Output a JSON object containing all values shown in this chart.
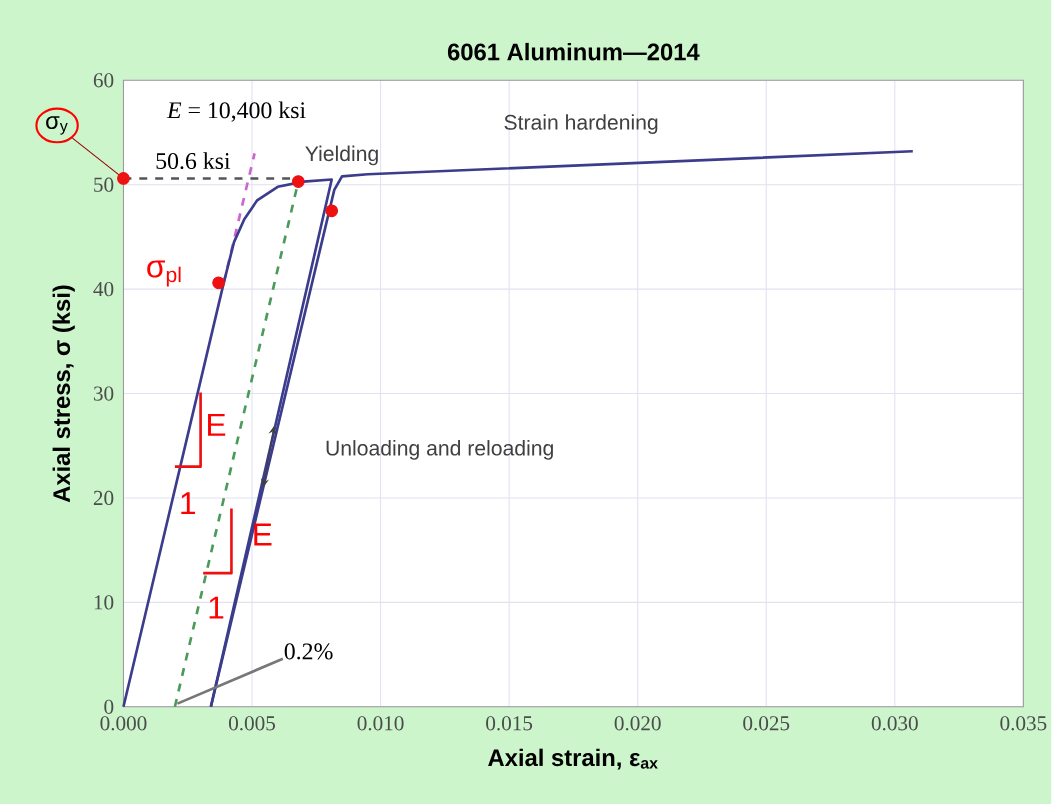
{
  "chart_data": {
    "type": "line",
    "title": "6061 Aluminum—2014",
    "xlabel": "Axial strain, ε$_{ax}$",
    "ylabel": "Axial stress, σ (ksi)",
    "xlim": [
      0,
      0.035
    ],
    "ylim": [
      0,
      60
    ],
    "xticks": [
      {
        "value": 0,
        "label": "0.000"
      },
      {
        "value": 0.005,
        "label": "0.005"
      },
      {
        "value": 0.01,
        "label": "0.010"
      },
      {
        "value": 0.015,
        "label": "0.015"
      },
      {
        "value": 0.02,
        "label": "0.020"
      },
      {
        "value": 0.025,
        "label": "0.025"
      },
      {
        "value": 0.03,
        "label": "0.030"
      },
      {
        "value": 0.035,
        "label": "0.035"
      }
    ],
    "yticks": [
      0,
      10,
      20,
      30,
      40,
      50,
      60
    ],
    "grid": true,
    "series": [
      {
        "color": "#cc66cc",
        "line_style": "dashed",
        "x": [
          0.0039,
          0.0051
        ],
        "values": [
          40.6,
          53
        ]
      },
      {
        "color": "#555555",
        "line_style": "dashed",
        "x": [
          0,
          0.0068
        ],
        "values": [
          50.6,
          50.6
        ]
      },
      {
        "color": "#4a9a5a",
        "line_style": "dashed",
        "x": [
          0.002,
          0.0068
        ],
        "values": [
          0,
          50.3
        ]
      },
      {
        "color": "#3c3c8c",
        "line_style": "solid",
        "x": [
          0,
          0.0039,
          0.0043,
          0.0047,
          0.0052,
          0.006,
          0.007,
          0.0081,
          0.0034
        ],
        "values": [
          0,
          40.6,
          44.5,
          46.7,
          48.5,
          49.8,
          50.3,
          50.5,
          0
        ]
      },
      {
        "color": "#3c3c8c",
        "line_style": "solid",
        "x": [
          0.0034,
          0.0082,
          0.0085,
          0.0095,
          0.0307
        ],
        "values": [
          0,
          49.5,
          50.8,
          51.0,
          53.2
        ]
      },
      {
        "color": "#777777",
        "line_style": "solid",
        "x": [
          0.0062,
          0.0021
        ],
        "values": [
          4.6,
          0.3
        ]
      },
      {
        "color": "#ee1111",
        "line_style": "solid",
        "x": [
          0.003,
          0.003,
          0.002
        ],
        "values": [
          30.1,
          23.0,
          23.0
        ]
      },
      {
        "color": "#ee1111",
        "line_style": "solid",
        "x": [
          0.0042,
          0.0042,
          0.0031
        ],
        "values": [
          19.0,
          12.8,
          12.8
        ]
      },
      {
        "type": "scatter",
        "color": "#ee1111",
        "x": [
          0,
          0.0037,
          0.0068,
          0.0081
        ],
        "values": [
          50.6,
          40.6,
          50.3,
          47.5
        ]
      }
    ],
    "annotations": [
      "*E* = 10,400 ksi",
      "50.6 ksi",
      "Yielding",
      "Strain hardening",
      "Unloading and reloading",
      "0.2%",
      "σ$_{pl}$",
      "E",
      "1",
      "E",
      "1",
      "σ$_{y}$"
    ]
  }
}
